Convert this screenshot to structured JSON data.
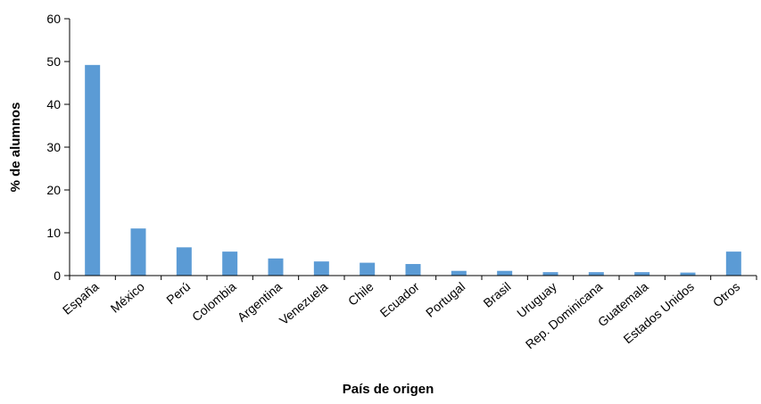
{
  "chart_data": {
    "type": "bar",
    "title": "",
    "xlabel": "País de origen",
    "ylabel": "% de alumnos",
    "ylim": [
      0,
      60
    ],
    "yticks": [
      0,
      10,
      20,
      30,
      40,
      50,
      60
    ],
    "grid": false,
    "legend": "none",
    "bar_color": "#5b9bd5",
    "categories": [
      "España",
      "México",
      "Perú",
      "Colombia",
      "Argentina",
      "Venezuela",
      "Chile",
      "Ecuador",
      "Portugal",
      "Brasil",
      "Uruguay",
      "Rep. Dominicana",
      "Guatemala",
      "Estados Unidos",
      "Otros"
    ],
    "values": [
      49.2,
      11.0,
      6.6,
      5.6,
      4.0,
      3.3,
      3.0,
      2.7,
      1.1,
      1.1,
      0.8,
      0.8,
      0.8,
      0.7,
      5.6
    ]
  }
}
